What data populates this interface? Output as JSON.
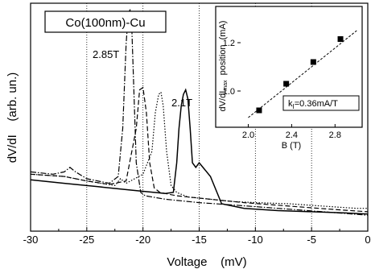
{
  "chart_data": [
    {
      "type": "line",
      "title_box": "Co(100nm)-Cu",
      "xlabel": "Voltage    (mV)",
      "ylabel": "dV/dI    (arb. un.)",
      "xlim": [
        -30,
        0
      ],
      "ylim": [
        0,
        1
      ],
      "x_ticks": [
        "-30",
        "-25",
        "-20",
        "-15",
        "-10",
        "-5",
        "0"
      ],
      "vertical_dotted_gridlines_at": [
        -25,
        -20,
        -15,
        -10,
        -5
      ],
      "annotations": [
        "2.85T",
        "2.1T"
      ],
      "series": [
        {
          "style": "dash-dot",
          "x": [
            -30,
            -28,
            -27,
            -26.5,
            -26,
            -25,
            -23,
            -22.2,
            -21.8,
            -21.5,
            -21.3,
            -21.15,
            -21.0,
            -20.8,
            -20.6,
            -20.2,
            -19.8,
            -18,
            -15,
            -12,
            -8,
            -4,
            0
          ],
          "y": [
            0.26,
            0.25,
            0.26,
            0.28,
            0.26,
            0.23,
            0.21,
            0.24,
            0.45,
            0.82,
            0.96,
            0.97,
            0.9,
            0.6,
            0.3,
            0.17,
            0.155,
            0.14,
            0.125,
            0.115,
            0.1,
            0.085,
            0.07
          ]
        },
        {
          "style": "dashed",
          "x": [
            -30,
            -27,
            -25,
            -23,
            -21.5,
            -20.6,
            -20.3,
            -20.0,
            -19.7,
            -19.4,
            -19.0,
            -18.5,
            -17,
            -14,
            -11,
            -7,
            -3,
            0
          ],
          "y": [
            0.25,
            0.24,
            0.22,
            0.205,
            0.22,
            0.45,
            0.62,
            0.63,
            0.52,
            0.3,
            0.19,
            0.17,
            0.155,
            0.14,
            0.125,
            0.11,
            0.095,
            0.085
          ]
        },
        {
          "style": "dotted",
          "x": [
            -30,
            -27,
            -25,
            -22.5,
            -22,
            -21.5,
            -20,
            -19.2,
            -18.9,
            -18.6,
            -18.4,
            -18.2,
            -17.9,
            -17.5,
            -17,
            -16,
            -14,
            -12,
            -10,
            -7,
            -4,
            -1,
            0
          ],
          "y": [
            0.25,
            0.24,
            0.22,
            0.2,
            0.23,
            0.21,
            0.25,
            0.35,
            0.52,
            0.6,
            0.61,
            0.55,
            0.35,
            0.2,
            0.17,
            0.15,
            0.14,
            0.13,
            0.125,
            0.12,
            0.11,
            0.1,
            0.1
          ]
        },
        {
          "style": "solid",
          "x": [
            -30,
            -27,
            -24,
            -21,
            -18,
            -17.3,
            -17.0,
            -16.8,
            -16.6,
            -16.4,
            -16.2,
            -16.0,
            -15.8,
            -15.6,
            -15.3,
            -15.0,
            -14.5,
            -14.0,
            -13,
            -11,
            -8,
            -5,
            -2,
            0
          ],
          "y": [
            0.225,
            0.21,
            0.195,
            0.18,
            0.165,
            0.17,
            0.3,
            0.45,
            0.55,
            0.6,
            0.62,
            0.58,
            0.45,
            0.3,
            0.28,
            0.3,
            0.27,
            0.24,
            0.12,
            0.1,
            0.09,
            0.085,
            0.08,
            0.075
          ]
        }
      ]
    },
    {
      "type": "scatter",
      "inset": true,
      "xlabel": "B (T)",
      "ylabel": "dV/dIₘₐₓ position  (mA)",
      "ylabel_main": "dV/dI",
      "ylabel_sub": "max",
      "ylabel_rest": "  position  (mA)",
      "xlim": [
        1.9,
        3.05
      ],
      "ylim": [
        0.85,
        1.35
      ],
      "x_ticks": [
        "2.0",
        "2.4",
        "2.8"
      ],
      "y_ticks": [
        "1.0",
        "1.2"
      ],
      "legend_text": "kₗ=0.36mA/T",
      "legend_main": "k",
      "legend_sub": "I",
      "legend_rest": "=0.36mA/T",
      "x": [
        2.1,
        2.35,
        2.6,
        2.85
      ],
      "y": [
        0.92,
        1.03,
        1.12,
        1.215
      ],
      "fit_line": {
        "x": [
          2.0,
          3.0
        ],
        "y": [
          0.89,
          1.25
        ],
        "style": "dashed"
      }
    }
  ]
}
